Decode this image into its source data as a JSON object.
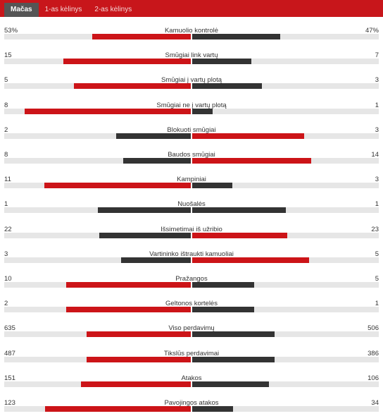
{
  "tabs": [
    {
      "label": "Mačas",
      "active": true
    },
    {
      "label": "1-as kėlinys",
      "active": false
    },
    {
      "label": "2-as kėlinys",
      "active": false
    }
  ],
  "colors": {
    "home": "#cc1418",
    "away": "#333333",
    "track": "#e6e6e6"
  },
  "stats": [
    {
      "name": "Kamuolio kontrolė",
      "left": "53%",
      "right": "47%",
      "left_share": 0.53,
      "right_share": 0.47,
      "left_color": "red",
      "right_color": "dark"
    },
    {
      "name": "Smūgiai link vartų",
      "left": "15",
      "right": "7",
      "left_share": 0.682,
      "right_share": 0.318,
      "left_color": "red",
      "right_color": "dark"
    },
    {
      "name": "Smūgiai į vartų plotą",
      "left": "5",
      "right": "3",
      "left_share": 0.625,
      "right_share": 0.375,
      "left_color": "red",
      "right_color": "dark"
    },
    {
      "name": "Smūgiai ne į vartų plotą",
      "left": "8",
      "right": "1",
      "left_share": 0.889,
      "right_share": 0.111,
      "left_color": "red",
      "right_color": "dark"
    },
    {
      "name": "Blokuoti smūgiai",
      "left": "2",
      "right": "3",
      "left_share": 0.4,
      "right_share": 0.6,
      "left_color": "dark",
      "right_color": "red"
    },
    {
      "name": "Baudos smūgiai",
      "left": "8",
      "right": "14",
      "left_share": 0.364,
      "right_share": 0.636,
      "left_color": "dark",
      "right_color": "red"
    },
    {
      "name": "Kampiniai",
      "left": "11",
      "right": "3",
      "left_share": 0.786,
      "right_share": 0.214,
      "left_color": "red",
      "right_color": "dark"
    },
    {
      "name": "Nuošalės",
      "left": "1",
      "right": "1",
      "left_share": 0.5,
      "right_share": 0.5,
      "left_color": "dark",
      "right_color": "dark"
    },
    {
      "name": "Išsimetimai iš užribio",
      "left": "22",
      "right": "23",
      "left_share": 0.489,
      "right_share": 0.511,
      "left_color": "dark",
      "right_color": "red"
    },
    {
      "name": "Vartininko ištraukti kamuoliai",
      "left": "3",
      "right": "5",
      "left_share": 0.375,
      "right_share": 0.625,
      "left_color": "dark",
      "right_color": "red"
    },
    {
      "name": "Pražangos",
      "left": "10",
      "right": "5",
      "left_share": 0.667,
      "right_share": 0.333,
      "left_color": "red",
      "right_color": "dark"
    },
    {
      "name": "Geltonos kortelės",
      "left": "2",
      "right": "1",
      "left_share": 0.667,
      "right_share": 0.333,
      "left_color": "red",
      "right_color": "dark"
    },
    {
      "name": "Viso perdavimų",
      "left": "635",
      "right": "506",
      "left_share": 0.557,
      "right_share": 0.443,
      "left_color": "red",
      "right_color": "dark"
    },
    {
      "name": "Tikslūs perdavimai",
      "left": "487",
      "right": "386",
      "left_share": 0.558,
      "right_share": 0.442,
      "left_color": "red",
      "right_color": "dark"
    },
    {
      "name": "Atakos",
      "left": "151",
      "right": "106",
      "left_share": 0.588,
      "right_share": 0.412,
      "left_color": "red",
      "right_color": "dark"
    },
    {
      "name": "Pavojingos atakos",
      "left": "123",
      "right": "34",
      "left_share": 0.783,
      "right_share": 0.217,
      "left_color": "red",
      "right_color": "dark"
    }
  ]
}
